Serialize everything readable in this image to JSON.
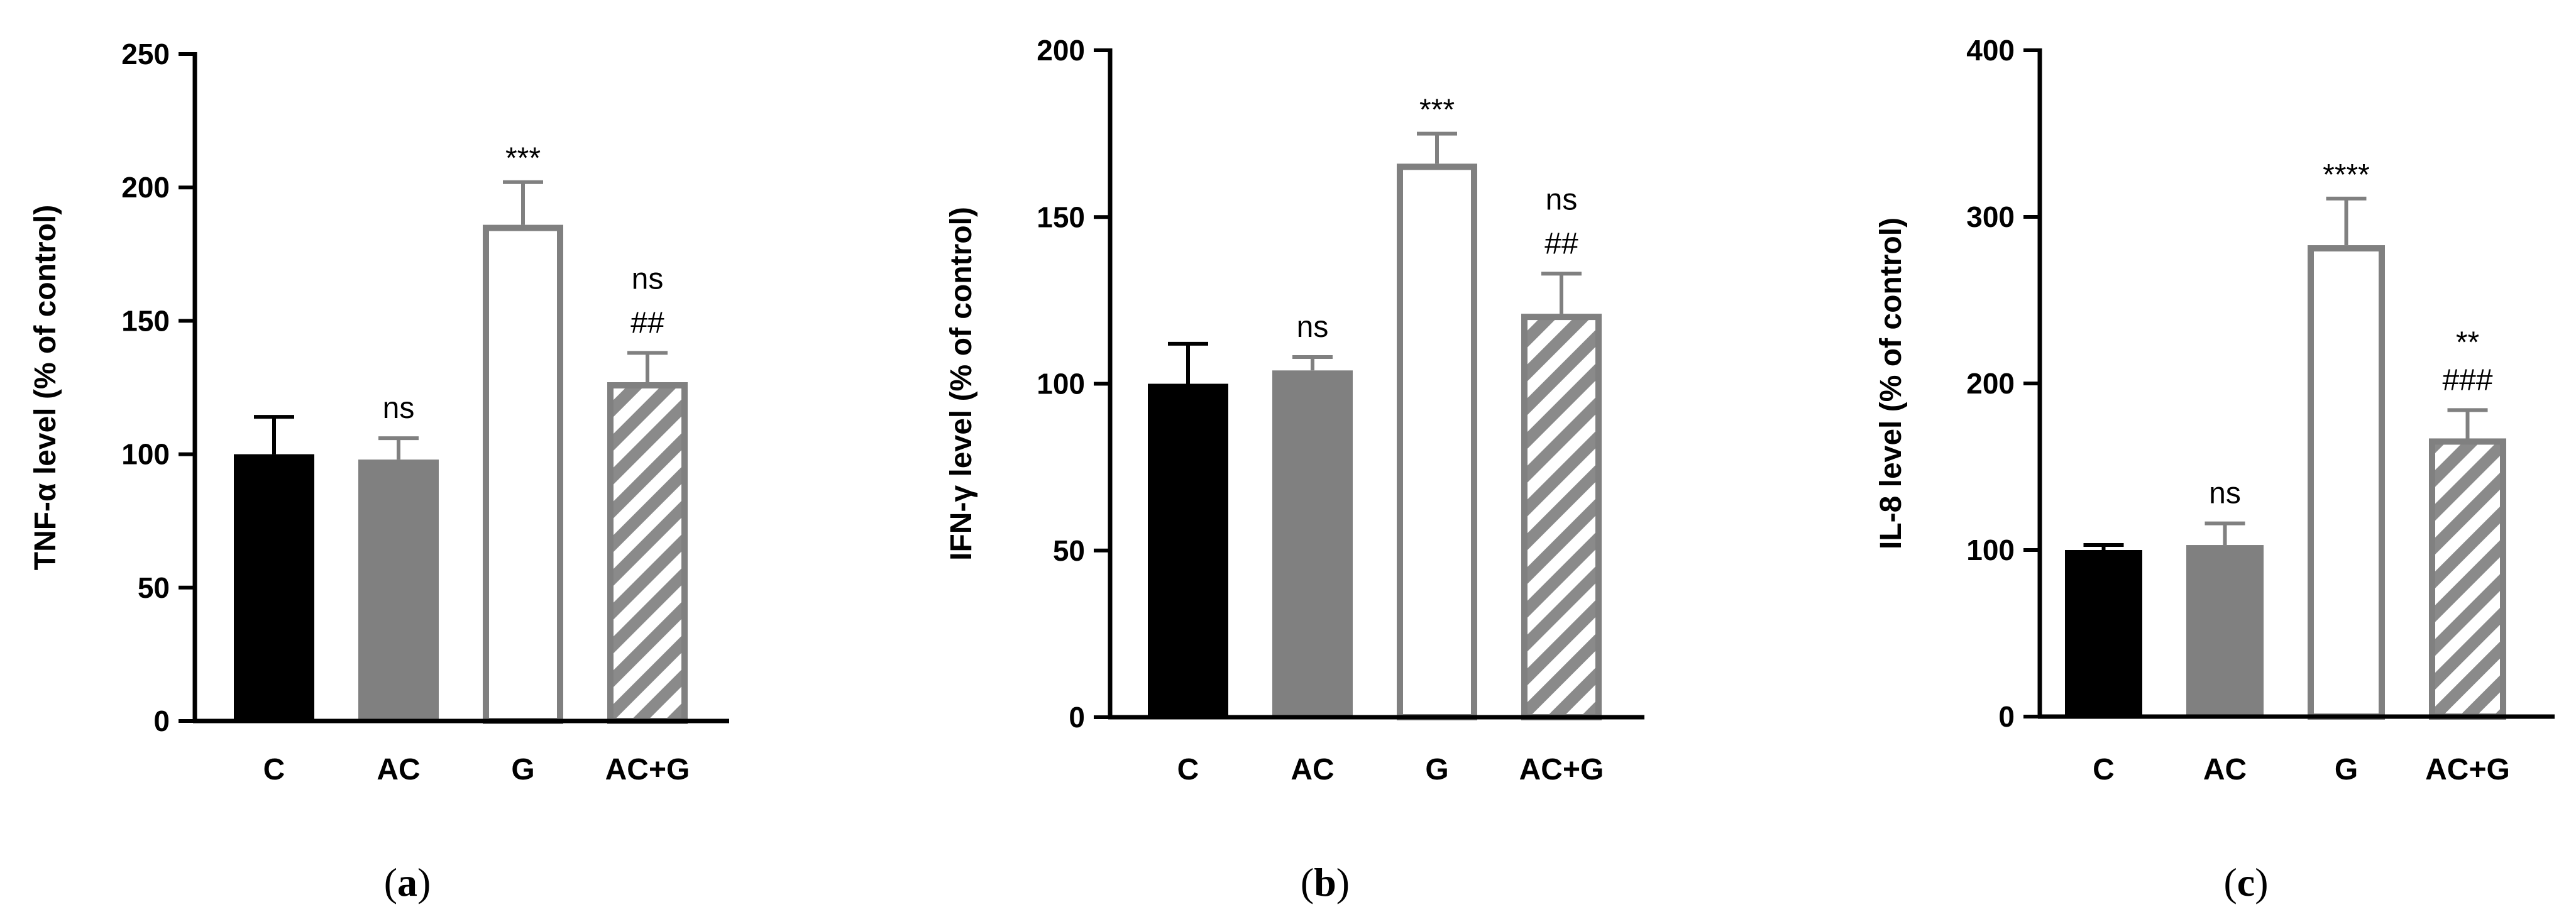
{
  "chart_data": [
    {
      "type": "bar",
      "panel_label": "a",
      "ylabel": "TNF-α level (% of control)",
      "ylim": [
        0,
        250
      ],
      "yticks": [
        0,
        50,
        100,
        150,
        200,
        250
      ],
      "categories": [
        "C",
        "AC",
        "G",
        "AC+G"
      ],
      "values": [
        100,
        98,
        186,
        127
      ],
      "errors": [
        14,
        8,
        16,
        11
      ],
      "annotations": [
        [],
        [
          "ns"
        ],
        [
          "***"
        ],
        [
          "ns",
          "##"
        ]
      ],
      "styles": [
        "black",
        "gray",
        "open",
        "hatched"
      ]
    },
    {
      "type": "bar",
      "panel_label": "b",
      "ylabel": "IFN-γ level (% of control)",
      "ylim": [
        0,
        200
      ],
      "yticks": [
        0,
        50,
        100,
        150,
        200
      ],
      "categories": [
        "C",
        "AC",
        "G",
        "AC+G"
      ],
      "values": [
        100,
        104,
        166,
        121
      ],
      "errors": [
        12,
        4,
        9,
        12
      ],
      "annotations": [
        [],
        [
          "ns"
        ],
        [
          "***"
        ],
        [
          "ns",
          "##"
        ]
      ],
      "styles": [
        "black",
        "gray",
        "open",
        "hatched"
      ]
    },
    {
      "type": "bar",
      "panel_label": "c",
      "ylabel": "IL-8 level (% of control)",
      "ylim": [
        0,
        400
      ],
      "yticks": [
        0,
        100,
        200,
        300,
        400
      ],
      "categories": [
        "C",
        "AC",
        "G",
        "AC+G"
      ],
      "values": [
        100,
        103,
        283,
        167
      ],
      "errors": [
        3,
        13,
        28,
        17
      ],
      "annotations": [
        [],
        [
          "ns"
        ],
        [
          "****"
        ],
        [
          "**",
          "###"
        ]
      ],
      "styles": [
        "black",
        "gray",
        "open",
        "hatched"
      ]
    }
  ],
  "colors": {
    "black_bar": "#000000",
    "gray_bar": "#808080",
    "open_bar_stroke": "#808080",
    "hatch": "#808080"
  }
}
